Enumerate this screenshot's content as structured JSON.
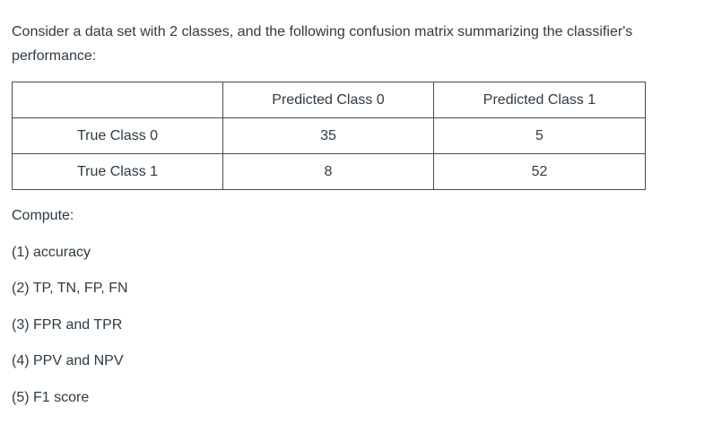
{
  "intro": "Consider a data set with 2 classes, and the following confusion matrix summarizing the classifier's performance:",
  "table": {
    "headers": [
      "",
      "Predicted Class 0",
      "Predicted Class 1"
    ],
    "rows": [
      {
        "label": "True Class 0",
        "cells": [
          "35",
          "5"
        ]
      },
      {
        "label": "True Class 1",
        "cells": [
          "8",
          "52"
        ]
      }
    ]
  },
  "compute_label": "Compute:",
  "items": [
    "(1) accuracy",
    "(2) TP, TN, FP, FN",
    "(3) FPR and TPR",
    "(4) PPV and NPV",
    "(5) F1 score"
  ]
}
